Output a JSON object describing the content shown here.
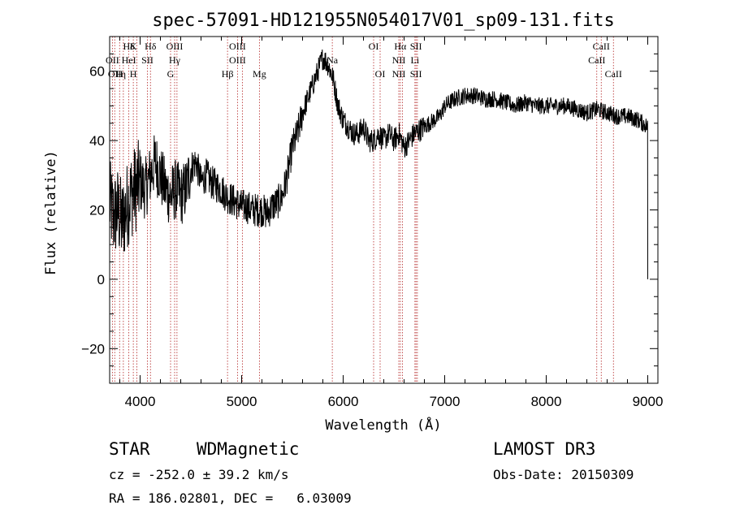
{
  "chart_data": {
    "type": "line",
    "title": "spec-57091-HD121955N054017V01_sp09-131.fits",
    "xlabel": "Wavelength (Å)",
    "ylabel": "Flux (relative)",
    "xlim": [
      3700,
      9100
    ],
    "ylim": [
      -30,
      70
    ],
    "xticks": [
      4000,
      5000,
      6000,
      7000,
      8000,
      9000
    ],
    "yticks": [
      -20,
      0,
      20,
      40,
      60
    ],
    "grid": false,
    "line_color": "#000000",
    "marker_color": "#b22222",
    "series": [
      {
        "x": [
          3700,
          3740,
          3780,
          3820,
          3860,
          3900,
          3950,
          4000,
          4050,
          4100,
          4150,
          4200,
          4250,
          4300,
          4350,
          4400,
          4450,
          4500,
          4550,
          4600,
          4650,
          4700,
          4750,
          4800,
          4850,
          4900,
          4950,
          5000,
          5050,
          5100,
          5150,
          5200,
          5250,
          5300,
          5350,
          5400,
          5450,
          5500,
          5550,
          5600,
          5650,
          5700,
          5750,
          5800,
          5850,
          5900,
          5950,
          6000,
          6050,
          6100,
          6150,
          6200,
          6250,
          6300,
          6350,
          6400,
          6450,
          6500,
          6550,
          6600,
          6650,
          6700,
          6750,
          6800,
          6850,
          6900,
          6950,
          7000,
          7100,
          7200,
          7300,
          7400,
          7500,
          7600,
          7700,
          7800,
          7900,
          8000,
          8100,
          8200,
          8300,
          8400,
          8500,
          8600,
          8700,
          8800,
          8900,
          8950,
          9000
        ],
        "values": [
          22,
          18,
          20,
          16,
          20,
          24,
          26,
          28,
          26,
          30,
          34,
          30,
          26,
          24,
          26,
          24,
          26,
          32,
          34,
          28,
          30,
          28,
          27,
          26,
          24,
          23,
          22,
          21,
          21,
          20,
          20,
          20,
          19,
          21,
          22,
          24,
          30,
          38,
          42,
          48,
          52,
          56,
          60,
          64,
          62,
          58,
          50,
          46,
          44,
          42,
          42,
          44,
          40,
          40,
          42,
          40,
          42,
          40,
          42,
          38,
          40,
          42,
          43,
          44,
          45,
          46,
          47,
          50,
          52,
          53,
          53,
          52,
          52,
          51,
          50,
          51,
          50,
          50,
          50,
          50,
          49,
          48,
          49,
          48,
          47,
          47,
          46,
          45,
          44
        ]
      }
    ],
    "line_markers": [
      {
        "wl": 3727,
        "top": "",
        "mid": "OII",
        "low": ""
      },
      {
        "wl": 3750,
        "top": "",
        "mid": "",
        "low": "OII"
      },
      {
        "wl": 3798,
        "top": "",
        "mid": "",
        "low": "H"
      },
      {
        "wl": 3835,
        "top": "",
        "mid": "",
        "low": "η"
      },
      {
        "wl": 3889,
        "top": "Hδ",
        "mid": "HeI",
        "low": ""
      },
      {
        "wl": 3933,
        "top": "K",
        "mid": "",
        "low": "H"
      },
      {
        "wl": 3968,
        "top": "",
        "mid": "",
        "low": ""
      },
      {
        "wl": 4072,
        "top": "",
        "mid": "SII",
        "low": ""
      },
      {
        "wl": 4102,
        "top": "Hδ",
        "mid": "",
        "low": ""
      },
      {
        "wl": 4300,
        "top": "",
        "mid": "",
        "low": "G"
      },
      {
        "wl": 4340,
        "top": "OIII",
        "mid": "Hγ",
        "low": ""
      },
      {
        "wl": 4363,
        "top": "",
        "mid": "",
        "low": ""
      },
      {
        "wl": 4861,
        "top": "",
        "mid": "",
        "low": "Hβ"
      },
      {
        "wl": 4959,
        "top": "OIII",
        "mid": "OIII",
        "low": ""
      },
      {
        "wl": 5007,
        "top": "",
        "mid": "",
        "low": ""
      },
      {
        "wl": 5175,
        "top": "",
        "mid": "",
        "low": "Mg"
      },
      {
        "wl": 5893,
        "top": "",
        "mid": "Na",
        "low": ""
      },
      {
        "wl": 6300,
        "top": "OI",
        "mid": "",
        "low": ""
      },
      {
        "wl": 6364,
        "top": "",
        "mid": "",
        "low": "OI"
      },
      {
        "wl": 6548,
        "top": "",
        "mid": "NII",
        "low": "NII"
      },
      {
        "wl": 6563,
        "top": "Hα",
        "mid": "",
        "low": ""
      },
      {
        "wl": 6583,
        "top": "",
        "mid": "",
        "low": ""
      },
      {
        "wl": 6707,
        "top": "",
        "mid": "Li",
        "low": ""
      },
      {
        "wl": 6717,
        "top": "SII",
        "mid": "",
        "low": "SII"
      },
      {
        "wl": 6731,
        "top": "",
        "mid": "",
        "low": ""
      },
      {
        "wl": 8498,
        "top": "",
        "mid": "CaII",
        "low": ""
      },
      {
        "wl": 8542,
        "top": "CaII",
        "mid": "",
        "low": ""
      },
      {
        "wl": 8662,
        "top": "",
        "mid": "",
        "low": "CaII"
      }
    ]
  },
  "info": {
    "object_class": "STAR",
    "subclass": "WDMagnetic",
    "survey": "LAMOST DR3",
    "cz": "cz = -252.0 ± 39.2 km/s",
    "obs_date": "Obs-Date: 20150309",
    "coords": "RA = 186.02801, DEC =   6.03009"
  }
}
